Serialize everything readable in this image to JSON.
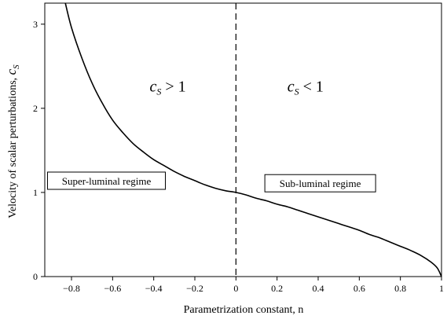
{
  "chart_data": {
    "type": "line",
    "xlabel": "Parametrization constant, n",
    "ylabel": "Velocity of scalar perturbations, ",
    "ylabel_symbol": "c",
    "ylabel_symbol_sub": "S",
    "xlim": [
      -0.93,
      1.0
    ],
    "ylim": [
      0,
      3.25
    ],
    "xticks": [
      -0.8,
      -0.6,
      -0.4,
      -0.2,
      0,
      0.2,
      0.4,
      0.6,
      0.8,
      1
    ],
    "xtick_labels": [
      "−0.8",
      "−0.6",
      "−0.4",
      "−0.2",
      "0",
      "0.2",
      "0.4",
      "0.6",
      "0.8",
      "1"
    ],
    "yticks": [
      0,
      1,
      2,
      3
    ],
    "ytick_labels": [
      "0",
      "1",
      "2",
      "3"
    ],
    "grid": false,
    "vline_x": 0,
    "series": [
      {
        "x": [
          -0.83,
          -0.8,
          -0.75,
          -0.7,
          -0.65,
          -0.6,
          -0.55,
          -0.5,
          -0.45,
          -0.4,
          -0.35,
          -0.3,
          -0.25,
          -0.2,
          -0.15,
          -0.1,
          -0.05,
          0,
          0.05,
          0.1,
          0.15,
          0.2,
          0.25,
          0.3,
          0.35,
          0.4,
          0.45,
          0.5,
          0.55,
          0.6,
          0.65,
          0.7,
          0.75,
          0.8,
          0.85,
          0.9,
          0.95,
          0.98,
          1.0
        ],
        "y": [
          3.25,
          2.96,
          2.6,
          2.3,
          2.06,
          1.86,
          1.71,
          1.58,
          1.48,
          1.39,
          1.32,
          1.25,
          1.19,
          1.14,
          1.09,
          1.05,
          1.02,
          1.0,
          0.97,
          0.93,
          0.9,
          0.86,
          0.83,
          0.79,
          0.75,
          0.71,
          0.67,
          0.63,
          0.59,
          0.55,
          0.5,
          0.46,
          0.41,
          0.36,
          0.31,
          0.25,
          0.17,
          0.1,
          0.0
        ],
        "color": "#000000"
      }
    ],
    "annotations": {
      "left_condition": {
        "c": "c",
        "sub": "S",
        "op": " > ",
        "rhs": "1",
        "x": -0.42,
        "y": 2.2
      },
      "right_condition": {
        "c": "c",
        "sub": "S",
        "op": " < ",
        "rhs": "1",
        "x": 0.25,
        "y": 2.2
      },
      "left_regime": {
        "text": "Super-luminal regime",
        "x": -0.63,
        "y": 1.13
      },
      "right_regime": {
        "text": "Sub-luminal regime",
        "x": 0.41,
        "y": 1.1
      }
    }
  }
}
